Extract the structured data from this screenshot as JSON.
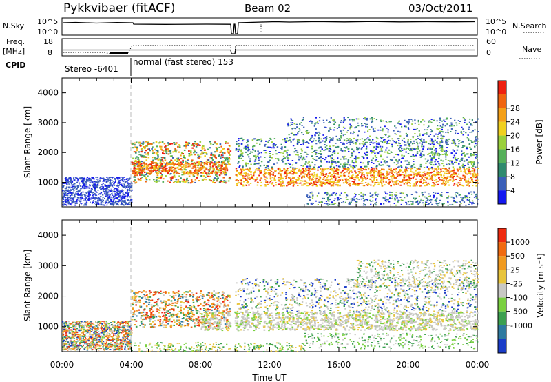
{
  "header": {
    "title": "Pykkvibaer (fitACF)",
    "beam": "Beam 02",
    "date": "03/Oct/2011"
  },
  "aux_panels": {
    "nsky_label": "N.Sky",
    "nsky_ticks": [
      "10^5",
      "10^0"
    ],
    "nsearch_label": "N.Search",
    "nsearch_ticks": [
      "10^5",
      "10^0"
    ],
    "freq_label_line1": "Freq.",
    "freq_label_line2": "[MHz]",
    "freq_ticks": [
      "18",
      "8"
    ],
    "nave_label": "Nave",
    "nave_ticks": [
      "60",
      "0"
    ],
    "cpid_label": "CPID",
    "cpid_segments": [
      "Stereo -6401",
      "normal (fast stereo) 153"
    ]
  },
  "chart_data": [
    {
      "type": "heatmap",
      "name": "power",
      "ylabel": "Slant Range [km]",
      "xlabel": "",
      "x_ticks": [
        "00:00",
        "04:00",
        "08:00",
        "12:00",
        "16:00",
        "20:00",
        "00:00"
      ],
      "y_ticks": [
        "1000",
        "2000",
        "3000",
        "4000"
      ],
      "ylim": [
        180,
        4500
      ],
      "xlim_hours": [
        0,
        24
      ],
      "colorbar": {
        "label": "Power [dB]",
        "ticks": [
          "4",
          "8",
          "12",
          "16",
          "20",
          "24",
          "28"
        ],
        "colors": [
          "#1418f0",
          "#3a5fb8",
          "#2f8a6e",
          "#56b05a",
          "#9ad03c",
          "#f0d020",
          "#f4a018",
          "#f06410",
          "#ee2010"
        ]
      }
    },
    {
      "type": "heatmap",
      "name": "velocity",
      "ylabel": "Slant Range [km]",
      "xlabel": "Time UT",
      "x_ticks": [
        "00:00",
        "04:00",
        "08:00",
        "12:00",
        "16:00",
        "20:00",
        "00:00"
      ],
      "y_ticks": [
        "1000",
        "2000",
        "3000",
        "4000"
      ],
      "ylim": [
        180,
        4500
      ],
      "xlim_hours": [
        0,
        24
      ],
      "colorbar": {
        "label": "Velocity [m s⁻¹]",
        "ticks": [
          "1000",
          "500",
          "25",
          "-25",
          "-100",
          "-500",
          "-1000"
        ],
        "colors": [
          "#1a3cc8",
          "#2e7aa0",
          "#3ca050",
          "#7ad040",
          "#c8c8c4",
          "#e8c43c",
          "#f09a20",
          "#f06a10",
          "#ee2a10"
        ]
      }
    }
  ]
}
